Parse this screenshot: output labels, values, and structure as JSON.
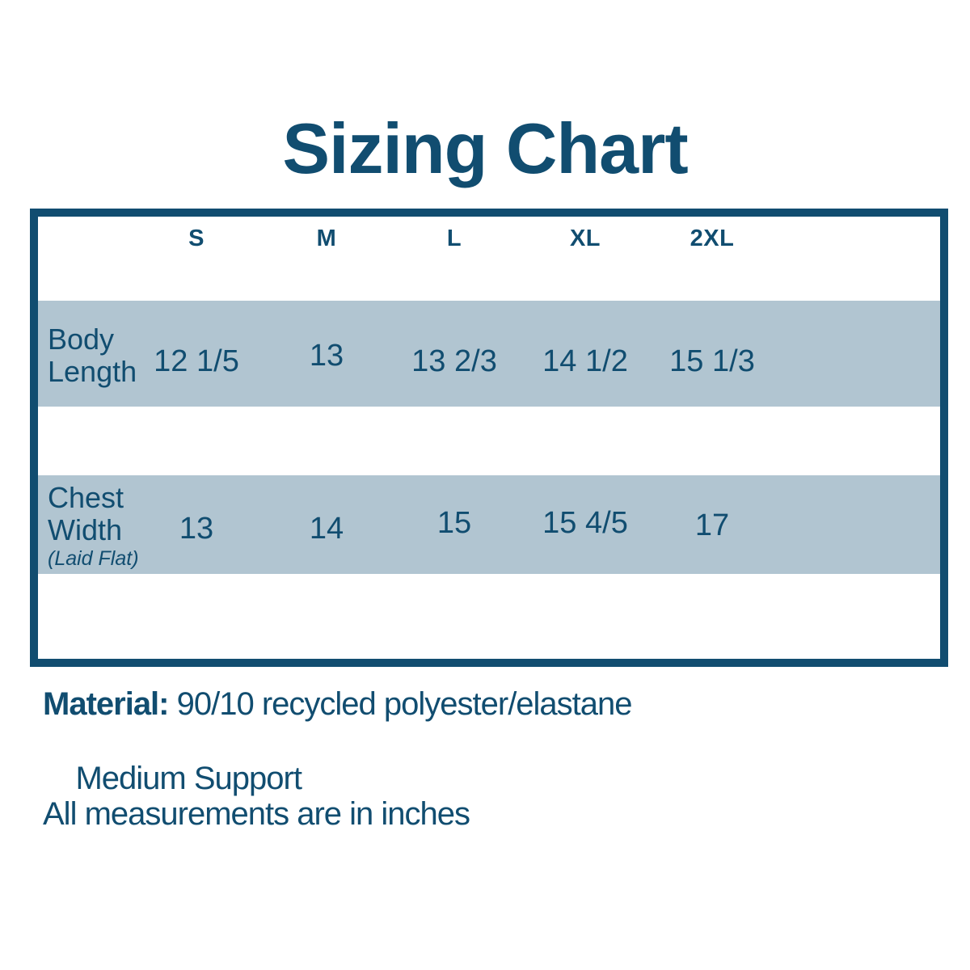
{
  "title": "Sizing Chart",
  "colors": {
    "dark_blue": "#114d70",
    "band_blue": "#b1c5d1",
    "background": "#ffffff"
  },
  "table": {
    "columns": [
      "S",
      "M",
      "L",
      "XL",
      "2XL"
    ],
    "rows": [
      {
        "label_lines": [
          "Body",
          "Length"
        ],
        "note": "",
        "values": [
          "12 1/5",
          "13",
          "13 2/3",
          "14 1/2",
          "15 1/3"
        ]
      },
      {
        "label_lines": [
          "Chest",
          "Width"
        ],
        "note": "(Laid Flat)",
        "values": [
          "13",
          "14",
          "15",
          "15 4/5",
          "17"
        ]
      }
    ]
  },
  "footer": {
    "material_label": "Material:",
    "material_value": " 90/10 recycled polyester/elastane",
    "support_text": "Medium Support",
    "units_note": "All measurements are in inches"
  },
  "chart_data": {
    "type": "table",
    "title": "Sizing Chart",
    "columns": [
      "S",
      "M",
      "L",
      "XL",
      "2XL"
    ],
    "rows": [
      {
        "label": "Body Length",
        "values": [
          "12 1/5",
          "13",
          "13 2/3",
          "14 1/2",
          "15 1/3"
        ]
      },
      {
        "label": "Chest Width (Laid Flat)",
        "values": [
          "13",
          "14",
          "15",
          "15 4/5",
          "17"
        ]
      }
    ],
    "units": "inches",
    "notes": [
      "Material: 90/10 recycled polyester/elastane",
      "Medium Support",
      "All measurements are in inches"
    ]
  }
}
